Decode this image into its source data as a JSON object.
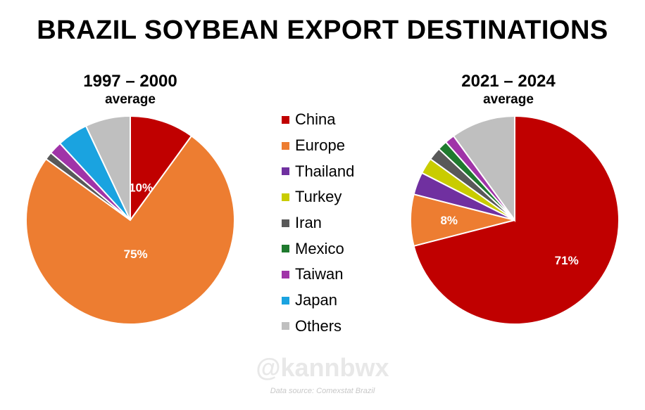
{
  "title": "BRAZIL SOYBEAN EXPORT DESTINATIONS",
  "watermark": "@kannbwx",
  "source": "Data source: Comexstat Brazil",
  "colors": {
    "China": "#c00000",
    "Europe": "#ed7d31",
    "Thailand": "#7030a0",
    "Turkey": "#c9cc00",
    "Iran": "#595959",
    "Mexico": "#1f7a2e",
    "Taiwan": "#a034a8",
    "Japan": "#1aa3e0",
    "Others": "#bfbfbf"
  },
  "legend": [
    "China",
    "Europe",
    "Thailand",
    "Turkey",
    "Iran",
    "Mexico",
    "Taiwan",
    "Japan",
    "Others"
  ],
  "chart_data": [
    {
      "type": "pie",
      "title": "1997 – 2000",
      "subtitle": "average",
      "categories": [
        "China",
        "Europe",
        "Thailand",
        "Turkey",
        "Iran",
        "Mexico",
        "Taiwan",
        "Japan",
        "Others"
      ],
      "values": [
        10,
        75,
        0,
        0,
        1.2,
        0,
        2,
        4.8,
        7
      ],
      "data_labels": [
        "10%",
        "75%",
        "",
        "",
        "",
        "",
        "",
        "",
        ""
      ]
    },
    {
      "type": "pie",
      "title": "2021 – 2024",
      "subtitle": "average",
      "categories": [
        "China",
        "Europe",
        "Thailand",
        "Turkey",
        "Iran",
        "Mexico",
        "Taiwan",
        "Japan",
        "Others"
      ],
      "values": [
        71,
        8,
        3.5,
        2.5,
        2,
        1.5,
        1.5,
        0,
        10
      ],
      "data_labels": [
        "71%",
        "8%",
        "",
        "",
        "",
        "",
        "",
        "",
        ""
      ]
    }
  ]
}
